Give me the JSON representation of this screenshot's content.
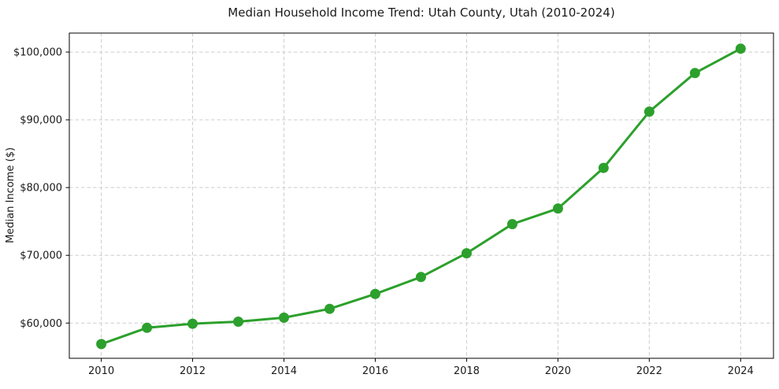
{
  "chart_data": {
    "type": "line",
    "title": "Median Household Income Trend: Utah County, Utah (2010-2024)",
    "xlabel": "",
    "ylabel": "Median Income ($)",
    "x": [
      2010,
      2011,
      2012,
      2013,
      2014,
      2015,
      2016,
      2017,
      2018,
      2019,
      2020,
      2021,
      2022,
      2023,
      2024
    ],
    "values": [
      56900,
      59300,
      59900,
      60200,
      60800,
      62100,
      64300,
      66800,
      70300,
      74600,
      76900,
      82900,
      91200,
      96900,
      100500
    ],
    "xticks": {
      "values": [
        2010,
        2012,
        2014,
        2016,
        2018,
        2020,
        2022,
        2024
      ],
      "labels": [
        "2010",
        "2012",
        "2014",
        "2016",
        "2018",
        "2020",
        "2022",
        "2024"
      ]
    },
    "yticks": {
      "values": [
        60000,
        70000,
        80000,
        90000,
        100000
      ],
      "labels": [
        "$60,000",
        "$70,000",
        "$80,000",
        "$90,000",
        "$100,000"
      ]
    },
    "xlim": [
      2009.3,
      2024.72
    ],
    "ylim": [
      54800,
      102800
    ],
    "grid": true,
    "grid_style": "dashed",
    "grid_color": "#cdcdcd",
    "line_color": "#2ca02c",
    "marker": "circle",
    "legend_position": "none",
    "background": "#ffffff",
    "spine_color": "#000000"
  }
}
